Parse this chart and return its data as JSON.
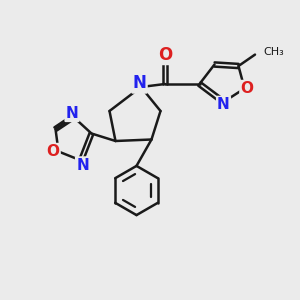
{
  "bg_color": "#ebebeb",
  "bond_color": "#1a1a1a",
  "bond_width": 1.8,
  "atom_colors": {
    "N": "#2222ee",
    "O": "#dd2020",
    "C": "#1a1a1a"
  },
  "font_size": 11
}
